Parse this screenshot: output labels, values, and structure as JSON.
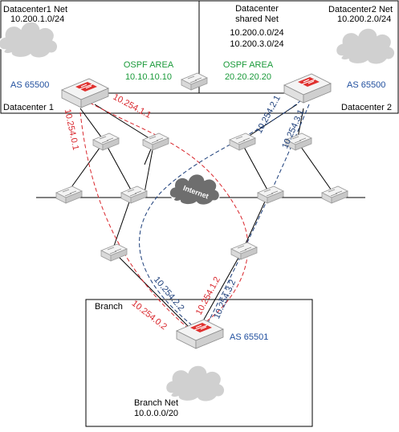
{
  "colors": {
    "red_link": "#d9262c",
    "blue_link": "#1c3e7a",
    "ospf_green": "#1a9a3a",
    "as_blue": "#1f4e9e",
    "router_red": "#e0312f"
  },
  "datacenter1": {
    "net_title": "Datacenter1 Net",
    "net_prefix": "10.200.1.0/24",
    "as_number": "AS 65500",
    "name": "Datacenter 1"
  },
  "datacenter2": {
    "net_title": "Datacenter2 Net",
    "net_prefix": "10.200.2.0/24",
    "as_number": "AS 65500",
    "name": "Datacenter 2"
  },
  "shared": {
    "line1": "Datacenter",
    "line2": "shared Net",
    "prefix1": "10.200.0.0/24",
    "prefix2": "10.200.3.0/24"
  },
  "ospf": {
    "area1_label": "OSPF AREA",
    "area1_id": "10.10.10.10",
    "area2_label": "OSPF AREA",
    "area2_id": "20.20.20.20"
  },
  "internet": {
    "label": "Internet"
  },
  "branch": {
    "title": "Branch",
    "as_number": "AS 65501",
    "net_title": "Branch Net",
    "net_prefix": "10.0.0.0/20"
  },
  "tunnels": {
    "dc1_red_a": "10.254.1.1",
    "dc1_red_b": "10.254.0.1",
    "dc2_blue_a": "10.254.2.1",
    "dc2_blue_b": "10.254.3.1",
    "br_blue_a": "10.254.2.2",
    "br_red_b": "10.254.0.2",
    "br_red_a": "10.254.1.2",
    "br_blue_b": "10.254.3.2"
  }
}
